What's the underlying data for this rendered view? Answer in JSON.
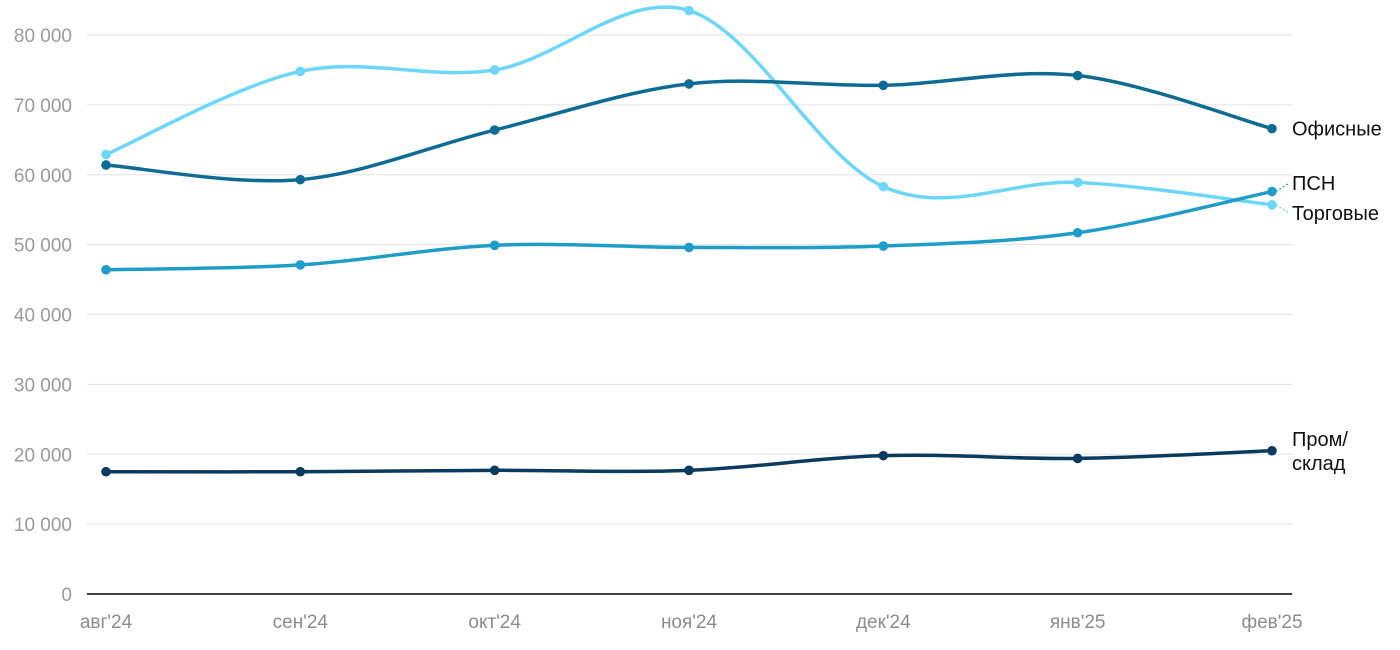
{
  "chart_data": {
    "type": "line",
    "title": "",
    "xlabel": "",
    "ylabel": "",
    "categories": [
      "авг'24",
      "сен'24",
      "окт'24",
      "ноя'24",
      "дек'24",
      "янв'25",
      "фев'25"
    ],
    "ylim": [
      0,
      80000
    ],
    "yticks": [
      0,
      10000,
      20000,
      30000,
      40000,
      50000,
      60000,
      70000,
      80000
    ],
    "ytick_labels": [
      "0",
      "10 000",
      "20 000",
      "30 000",
      "40 000",
      "50 000",
      "60 000",
      "70 000",
      "80 000"
    ],
    "grid": true,
    "legend": "direct labels at line ends (right)",
    "series": [
      {
        "name": "Офисные",
        "label_lines": [
          "Офисные"
        ],
        "color": "#0e6b93",
        "values": [
          61400,
          59300,
          66400,
          73000,
          72800,
          74200,
          66600
        ]
      },
      {
        "name": "ПСН",
        "label_lines": [
          "ПСН"
        ],
        "color": "#1f9cc8",
        "values": [
          46400,
          47100,
          49900,
          49600,
          49800,
          51700,
          57600
        ]
      },
      {
        "name": "Торговые",
        "label_lines": [
          "Торговые"
        ],
        "color": "#6dd6fb",
        "values": [
          62900,
          74800,
          75000,
          83500,
          58300,
          58900,
          55700
        ]
      },
      {
        "name": "Пром/склад",
        "label_lines": [
          "Пром/",
          "склад"
        ],
        "color": "#0a3a5e",
        "values": [
          17500,
          17500,
          17700,
          17700,
          19800,
          19400,
          20500
        ]
      }
    ]
  }
}
